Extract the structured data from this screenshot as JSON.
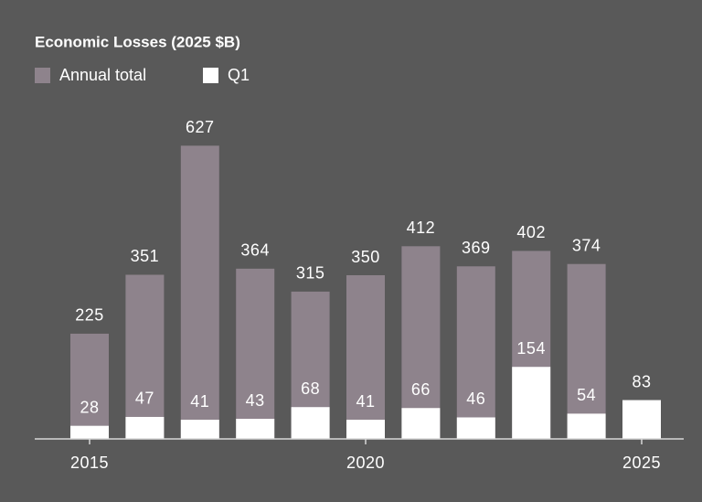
{
  "chart_data": {
    "type": "bar",
    "title": "Economic Losses (2025 $B)",
    "categories": [
      "2015",
      null,
      null,
      null,
      null,
      "2020",
      null,
      null,
      null,
      null,
      "2025"
    ],
    "series": [
      {
        "name": "Annual total",
        "color": "#8e838c",
        "values": [
          225,
          351,
          627,
          364,
          315,
          350,
          412,
          369,
          402,
          374,
          null
        ]
      },
      {
        "name": "Q1",
        "color": "#ffffff",
        "values": [
          28,
          47,
          41,
          43,
          68,
          41,
          66,
          46,
          154,
          54,
          83
        ]
      }
    ],
    "ylim": [
      0,
      700
    ]
  }
}
